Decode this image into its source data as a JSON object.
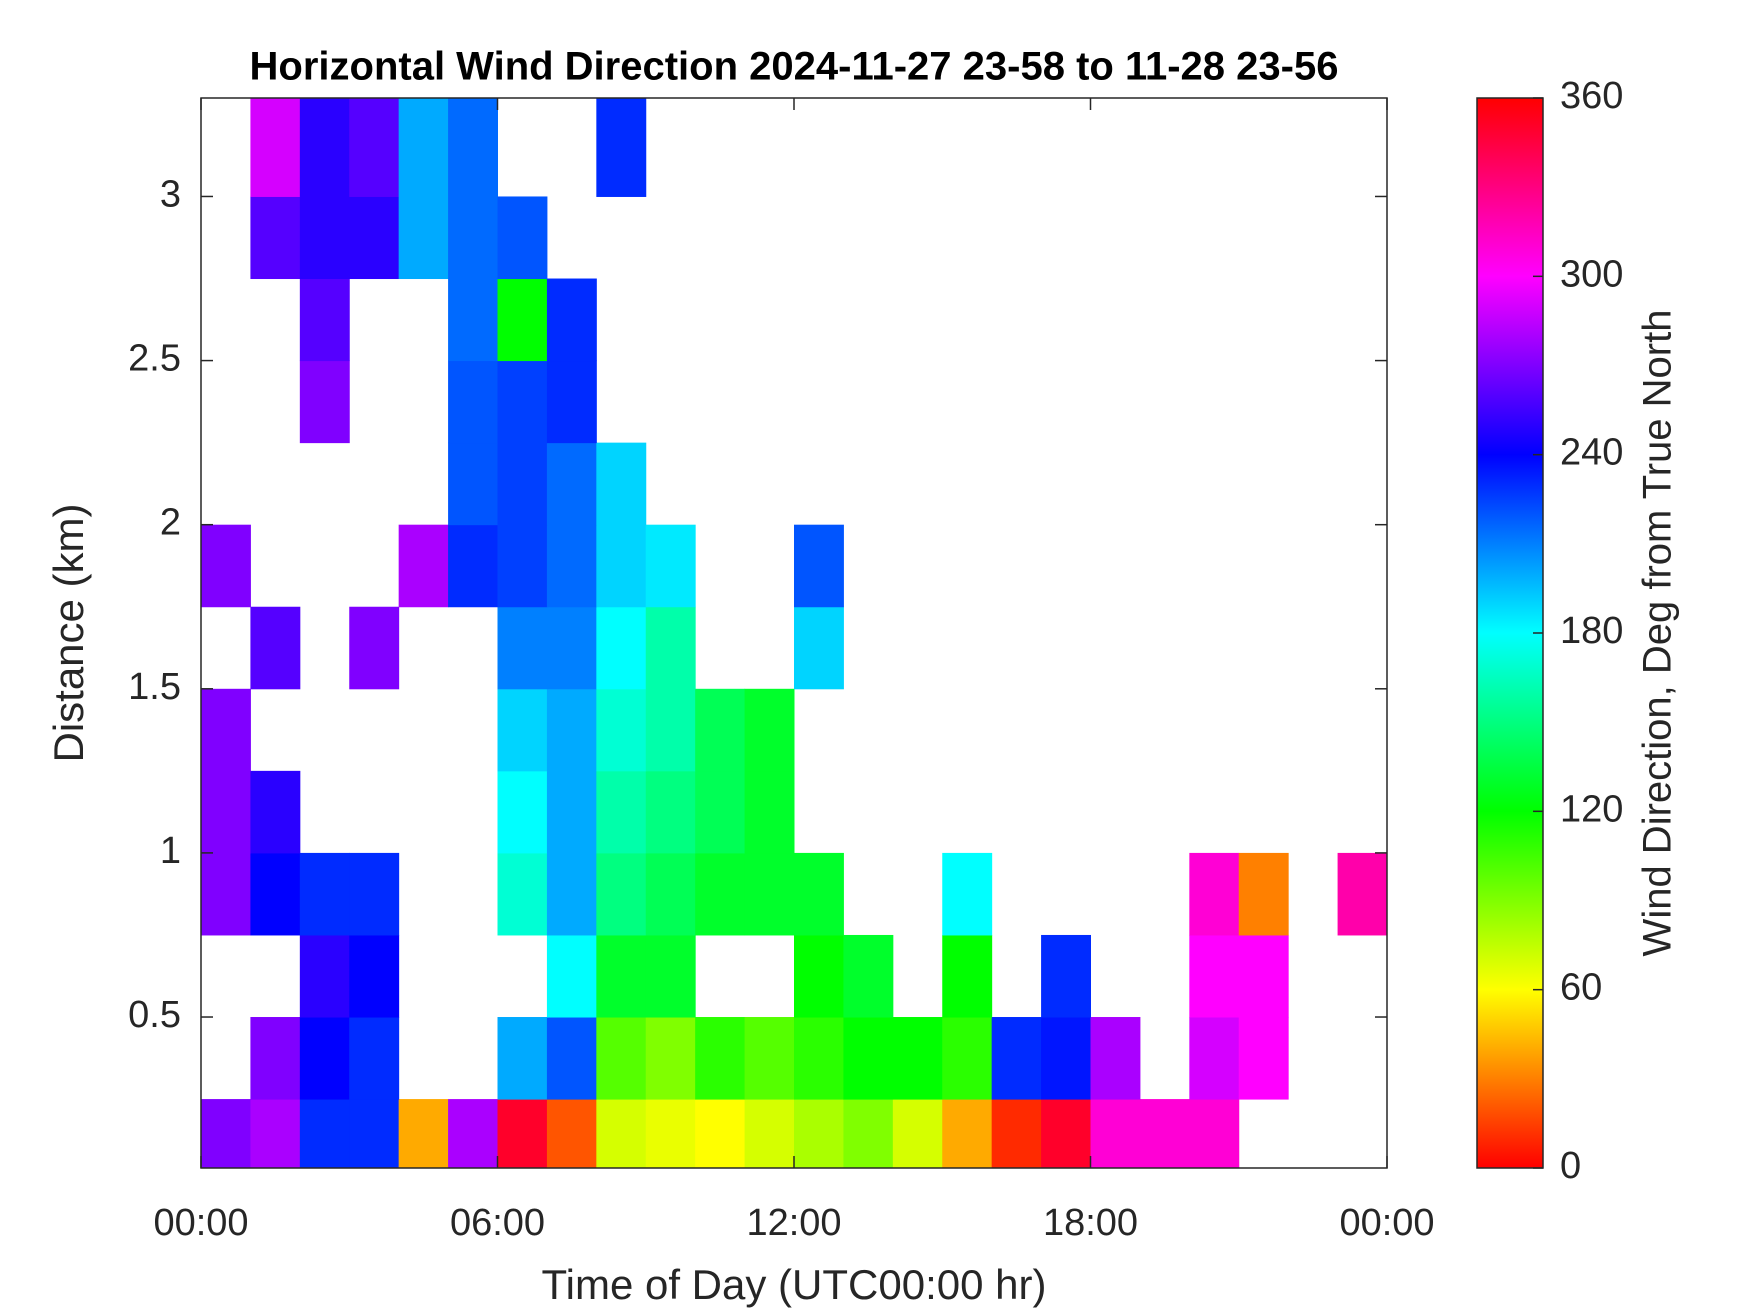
{
  "chart_data": {
    "type": "heatmap",
    "title": "Horizontal Wind Direction 2024-11-27 23-58 to 11-28 23-56",
    "xlabel": "Time of Day (UTC00:00 hr)",
    "ylabel": "Distance (km)",
    "colorbar_label": "Wind Direction, Deg from True North",
    "colormap": "hsv",
    "xbins": [
      0,
      1,
      2,
      3,
      4,
      5,
      6,
      7,
      8,
      9,
      10,
      11,
      12,
      13,
      14,
      15,
      16,
      17,
      18,
      19,
      20,
      21,
      22,
      23,
      24
    ],
    "ybins": [
      0.04,
      0.25,
      0.5,
      0.75,
      1.0,
      1.25,
      1.5,
      1.75,
      2.0,
      2.25,
      2.5,
      2.75,
      3.0,
      3.3
    ],
    "values": [
      [
        270,
        280,
        230,
        230,
        40,
        280,
        350,
        20,
        70,
        65,
        60,
        70,
        80,
        90,
        70,
        40,
        10,
        350,
        310,
        310,
        310,
        null,
        null,
        null
      ],
      [
        null,
        270,
        240,
        230,
        null,
        null,
        200,
        220,
        100,
        90,
        110,
        100,
        110,
        120,
        120,
        110,
        230,
        235,
        280,
        null,
        290,
        300,
        null,
        null
      ],
      [
        null,
        null,
        250,
        240,
        null,
        null,
        null,
        180,
        130,
        130,
        null,
        null,
        120,
        130,
        null,
        120,
        null,
        230,
        null,
        null,
        300,
        300,
        null,
        null
      ],
      [
        270,
        240,
        230,
        230,
        null,
        null,
        170,
        200,
        150,
        140,
        130,
        130,
        130,
        null,
        null,
        180,
        null,
        null,
        null,
        null,
        310,
        30,
        null,
        320
      ],
      [
        270,
        250,
        null,
        null,
        null,
        null,
        180,
        200,
        160,
        150,
        140,
        130,
        null,
        null,
        null,
        null,
        null,
        null,
        null,
        null,
        null,
        null,
        null,
        null
      ],
      [
        270,
        null,
        null,
        null,
        null,
        null,
        190,
        200,
        170,
        160,
        140,
        130,
        null,
        null,
        null,
        null,
        null,
        null,
        null,
        null,
        null,
        null,
        null,
        null
      ],
      [
        null,
        260,
        null,
        270,
        null,
        null,
        210,
        210,
        180,
        160,
        null,
        null,
        190,
        null,
        null,
        null,
        null,
        null,
        null,
        null,
        null,
        null,
        null,
        null
      ],
      [
        270,
        null,
        null,
        null,
        280,
        230,
        225,
        215,
        190,
        185,
        null,
        null,
        220,
        null,
        null,
        null,
        null,
        null,
        null,
        null,
        null,
        null,
        null,
        null
      ],
      [
        null,
        null,
        null,
        null,
        null,
        220,
        225,
        215,
        190,
        null,
        null,
        null,
        null,
        null,
        null,
        null,
        null,
        null,
        null,
        null,
        null,
        null,
        null,
        null
      ],
      [
        null,
        null,
        270,
        null,
        null,
        220,
        225,
        230,
        null,
        null,
        null,
        null,
        null,
        null,
        null,
        null,
        null,
        null,
        null,
        null,
        null,
        null,
        null,
        null
      ],
      [
        null,
        null,
        260,
        null,
        null,
        215,
        120,
        230,
        null,
        null,
        null,
        null,
        null,
        null,
        null,
        null,
        null,
        null,
        null,
        null,
        null,
        null,
        null,
        null
      ],
      [
        null,
        260,
        250,
        250,
        200,
        215,
        220,
        null,
        null,
        null,
        null,
        null,
        null,
        null,
        null,
        null,
        null,
        null,
        null,
        null,
        null,
        null,
        null,
        null
      ],
      [
        null,
        290,
        250,
        260,
        200,
        215,
        null,
        null,
        230,
        null,
        null,
        null,
        null,
        null,
        null,
        null,
        null,
        null,
        null,
        null,
        null,
        null,
        null,
        null
      ]
    ],
    "xlim": [
      0,
      24
    ],
    "xticks": [
      {
        "value": 0,
        "label": "00:00"
      },
      {
        "value": 6,
        "label": "06:00"
      },
      {
        "value": 12,
        "label": "12:00"
      },
      {
        "value": 18,
        "label": "18:00"
      },
      {
        "value": 24,
        "label": "00:00"
      }
    ],
    "ylim": [
      0.04,
      3.3
    ],
    "yticks": [
      0.5,
      1,
      1.5,
      2,
      2.5,
      3
    ],
    "clim": [
      0,
      360
    ],
    "cticks": [
      0,
      60,
      120,
      180,
      240,
      300,
      360
    ]
  }
}
